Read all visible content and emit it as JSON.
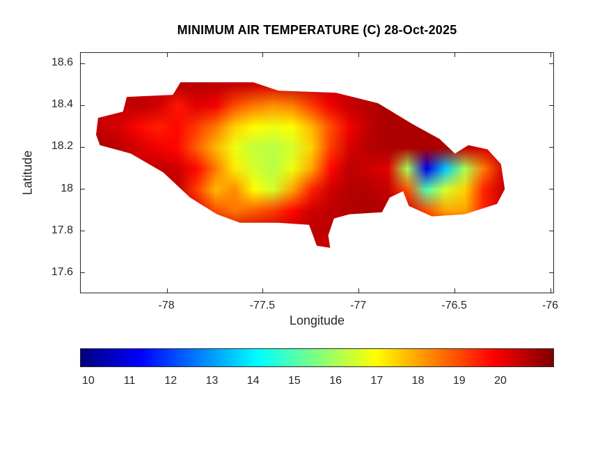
{
  "chart_data": {
    "type": "heatmap",
    "title": "MINIMUM AIR TEMPERATURE (C) 28-Oct-2025",
    "xlabel": "Longitude",
    "ylabel": "Latitude",
    "xlim": [
      -78.45,
      -75.98
    ],
    "ylim": [
      17.5,
      18.65
    ],
    "xticks": [
      -78,
      -77.5,
      -77,
      -76.5,
      -76
    ],
    "yticks": [
      17.6,
      17.8,
      18,
      18.2,
      18.4,
      18.6
    ],
    "grid_lines": "off",
    "colorbar": {
      "orientation": "horizontal",
      "colormap": "jet",
      "min": 9.8,
      "max": 21.3,
      "ticks": [
        10,
        11,
        12,
        13,
        14,
        15,
        16,
        17,
        18,
        19,
        20
      ]
    },
    "units": "degrees C",
    "region": "Jamaica",
    "grid": {
      "lon_centers": [
        -78.35,
        -78.25,
        -78.15,
        -78.05,
        -77.95,
        -77.85,
        -77.75,
        -77.65,
        -77.55,
        -77.45,
        -77.35,
        -77.25,
        -77.15,
        -77.05,
        -76.95,
        -76.85,
        -76.75,
        -76.65,
        -76.55,
        -76.45,
        -76.35,
        -76.25
      ],
      "lat_centers": [
        18.5,
        18.4,
        18.3,
        18.2,
        18.1,
        18.0,
        17.9,
        17.8,
        17.7
      ],
      "values": [
        [
          null,
          null,
          null,
          null,
          20.7,
          20.7,
          20.6,
          20.5,
          20.4,
          20.3,
          null,
          null,
          null,
          null,
          null,
          null,
          null,
          null,
          null,
          null,
          null,
          null
        ],
        [
          null,
          null,
          20.6,
          20.4,
          19.6,
          20.2,
          20.0,
          19.0,
          18.5,
          18.2,
          18.4,
          19.2,
          20.0,
          20.5,
          20.7,
          20.8,
          null,
          null,
          null,
          null,
          null,
          null
        ],
        [
          20.5,
          20.3,
          19.8,
          19.5,
          19.8,
          19.2,
          18.5,
          17.5,
          17.0,
          16.8,
          17.0,
          17.8,
          19.0,
          20.0,
          20.6,
          20.8,
          20.8,
          20.8,
          null,
          null,
          null,
          null
        ],
        [
          20.8,
          20.6,
          20.3,
          20.0,
          19.8,
          18.8,
          17.8,
          16.8,
          16.3,
          16.2,
          16.5,
          17.5,
          19.2,
          20.3,
          20.7,
          20.8,
          20.8,
          20.8,
          20.8,
          20.5,
          20.3,
          null
        ],
        [
          null,
          null,
          null,
          20.6,
          20.4,
          19.8,
          18.5,
          17.2,
          16.5,
          16.2,
          16.8,
          18.0,
          19.8,
          20.6,
          20.4,
          20.2,
          16.0,
          11.0,
          13.5,
          16.0,
          18.5,
          20.3
        ],
        [
          null,
          null,
          null,
          20.5,
          20.6,
          19.2,
          17.8,
          18.3,
          17.0,
          16.5,
          18.0,
          19.5,
          20.4,
          20.7,
          20.7,
          20.5,
          19.0,
          15.0,
          16.5,
          17.5,
          19.5,
          20.5
        ],
        [
          null,
          null,
          null,
          null,
          20.5,
          20.2,
          19.0,
          18.5,
          18.8,
          19.2,
          19.8,
          20.4,
          20.6,
          20.7,
          20.8,
          20.7,
          20.4,
          19.0,
          18.0,
          18.0,
          19.5,
          20.4
        ],
        [
          null,
          null,
          null,
          null,
          null,
          null,
          null,
          null,
          null,
          null,
          null,
          20.6,
          20.6,
          null,
          null,
          null,
          null,
          null,
          null,
          null,
          null,
          null
        ],
        [
          null,
          null,
          null,
          null,
          null,
          null,
          null,
          null,
          null,
          null,
          null,
          20.5,
          20.4,
          null,
          null,
          null,
          null,
          null,
          null,
          null,
          null,
          null
        ]
      ]
    },
    "island_outline": [
      [
        -78.37,
        18.26
      ],
      [
        -78.36,
        18.34
      ],
      [
        -78.23,
        18.37
      ],
      [
        -78.21,
        18.44
      ],
      [
        -77.97,
        18.45
      ],
      [
        -77.93,
        18.51
      ],
      [
        -77.55,
        18.51
      ],
      [
        -77.42,
        18.47
      ],
      [
        -77.12,
        18.46
      ],
      [
        -76.9,
        18.41
      ],
      [
        -76.72,
        18.31
      ],
      [
        -76.58,
        18.24
      ],
      [
        -76.5,
        18.17
      ],
      [
        -76.43,
        18.21
      ],
      [
        -76.33,
        18.19
      ],
      [
        -76.26,
        18.12
      ],
      [
        -76.24,
        18.0
      ],
      [
        -76.28,
        17.93
      ],
      [
        -76.45,
        17.88
      ],
      [
        -76.62,
        17.87
      ],
      [
        -76.74,
        17.92
      ],
      [
        -76.77,
        17.99
      ],
      [
        -76.84,
        17.96
      ],
      [
        -76.88,
        17.89
      ],
      [
        -77.05,
        17.88
      ],
      [
        -77.13,
        17.86
      ],
      [
        -77.16,
        17.78
      ],
      [
        -77.15,
        17.72
      ],
      [
        -77.22,
        17.73
      ],
      [
        -77.26,
        17.83
      ],
      [
        -77.42,
        17.84
      ],
      [
        -77.62,
        17.84
      ],
      [
        -77.74,
        17.88
      ],
      [
        -77.88,
        17.96
      ],
      [
        -78.02,
        18.08
      ],
      [
        -78.19,
        18.17
      ],
      [
        -78.35,
        18.21
      ]
    ]
  }
}
